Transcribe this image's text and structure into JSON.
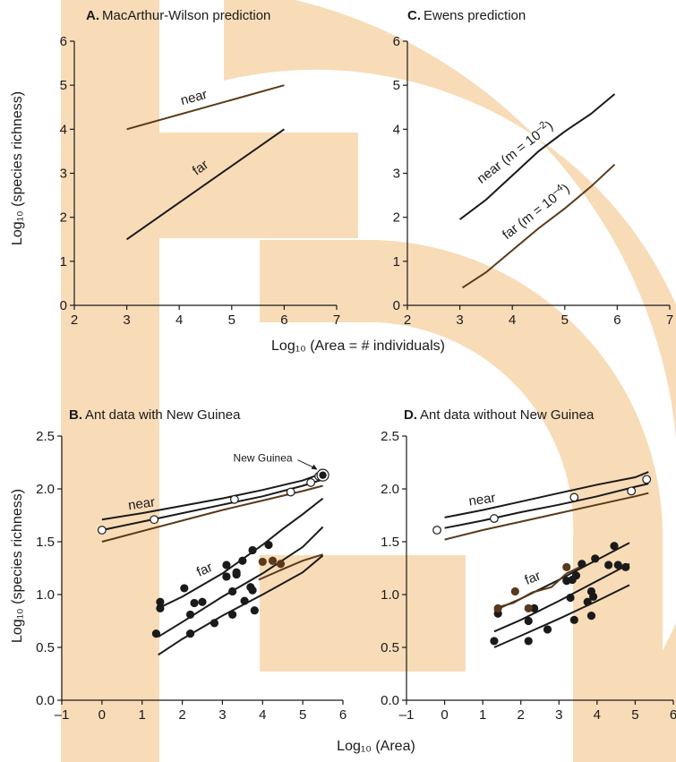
{
  "colors": {
    "dark": "#1a1a1a",
    "brown": "#5a3a1a",
    "watermark": "#f8dcb8"
  },
  "labels": {
    "ylabel_top": "Log₁₀ (species richness)",
    "ylabel_bottom": "Log₁₀ (species richness)",
    "xlabel_top": "Log₁₀ (Area = # individuals)",
    "xlabel_bottom": "Log₁₀ (Area)"
  },
  "chart_data": [
    {
      "id": "A",
      "type": "line",
      "title_letter": "A.",
      "title": "MacArthur-Wilson prediction",
      "xlim": [
        2,
        7
      ],
      "ylim": [
        0,
        6
      ],
      "xticks": [
        2,
        3,
        4,
        5,
        6,
        7
      ],
      "yticks": [
        0,
        1,
        2,
        3,
        4,
        5,
        6
      ],
      "series": [
        {
          "name": "near",
          "label_text": "near",
          "color": "brown",
          "curve": [
            [
              3,
              4.0
            ],
            [
              6,
              5.0
            ]
          ],
          "label_at": [
            4.3,
            4.63
          ],
          "label_angle": -15
        },
        {
          "name": "far",
          "label_text": "far",
          "color": "dark",
          "curve": [
            [
              3,
              1.5
            ],
            [
              6,
              4.0
            ]
          ],
          "label_at": [
            4.45,
            3.05
          ],
          "label_angle": -36
        }
      ]
    },
    {
      "id": "C",
      "type": "line",
      "title_letter": "C.",
      "title": "Ewens prediction",
      "xlim": [
        2,
        7
      ],
      "ylim": [
        0,
        6
      ],
      "xticks": [
        2,
        3,
        4,
        5,
        6,
        7
      ],
      "yticks": [
        0,
        1,
        2,
        3,
        4,
        5,
        6
      ],
      "series": [
        {
          "name": "near (m = 10⁻²)",
          "label_text": "near (m = 10–2)",
          "color": "dark",
          "curve": [
            [
              3.0,
              1.95
            ],
            [
              3.5,
              2.4
            ],
            [
              4.0,
              2.95
            ],
            [
              4.5,
              3.5
            ],
            [
              5.0,
              3.95
            ],
            [
              5.5,
              4.35
            ],
            [
              5.95,
              4.8
            ]
          ],
          "label_at": [
            4.1,
            3.4
          ],
          "label_angle": -38
        },
        {
          "name": "far (m = 10⁻⁴)",
          "label_text": "far (m = 10–4)",
          "color": "brown",
          "curve": [
            [
              3.05,
              0.4
            ],
            [
              3.5,
              0.75
            ],
            [
              4.0,
              1.25
            ],
            [
              4.5,
              1.75
            ],
            [
              5.0,
              2.2
            ],
            [
              5.5,
              2.7
            ],
            [
              5.95,
              3.2
            ]
          ],
          "label_at": [
            4.5,
            2.05
          ],
          "label_angle": -38
        }
      ]
    },
    {
      "id": "B",
      "type": "scatter",
      "title_letter": "B.",
      "title": "Ant data with New Guinea",
      "xlim": [
        -1,
        6
      ],
      "ylim": [
        0,
        2.5
      ],
      "xticks": [
        -1,
        0,
        1,
        2,
        3,
        4,
        5,
        6
      ],
      "xtick_labels": [
        "–1",
        "0",
        "1",
        "2",
        "3",
        "4",
        "5",
        "6"
      ],
      "yticks": [
        0,
        0.5,
        1.0,
        1.5,
        2.0,
        2.5
      ],
      "ytick_labels": [
        "0.0",
        "0.5",
        "1.0",
        "1.5",
        "2.0",
        "2.5"
      ],
      "near_open": [
        [
          0.0,
          1.61
        ],
        [
          1.3,
          1.71
        ],
        [
          3.3,
          1.9
        ],
        [
          4.7,
          1.97
        ],
        [
          5.2,
          2.06
        ],
        [
          5.4,
          2.12
        ]
      ],
      "far_black": [
        [
          1.35,
          0.63
        ],
        [
          1.45,
          0.93
        ],
        [
          1.45,
          0.87
        ],
        [
          2.05,
          1.06
        ],
        [
          2.2,
          0.63
        ],
        [
          2.2,
          0.81
        ],
        [
          2.3,
          0.92
        ],
        [
          2.5,
          0.93
        ],
        [
          2.8,
          0.73
        ],
        [
          3.1,
          1.28
        ],
        [
          3.1,
          1.17
        ],
        [
          3.25,
          1.03
        ],
        [
          3.25,
          0.81
        ],
        [
          3.35,
          1.19
        ],
        [
          3.35,
          1.21
        ],
        [
          3.5,
          1.32
        ],
        [
          3.55,
          0.94
        ],
        [
          3.7,
          1.07
        ],
        [
          3.75,
          1.04
        ],
        [
          3.75,
          1.42
        ],
        [
          3.8,
          0.85
        ],
        [
          4.15,
          1.47
        ]
      ],
      "far_brown": [
        [
          4.0,
          1.31
        ],
        [
          4.25,
          1.32
        ],
        [
          4.45,
          1.29
        ]
      ],
      "ng_point": [
        5.5,
        2.13
      ],
      "ng_label": "New Guinea",
      "near_curves": [
        {
          "color": "dark",
          "pts": [
            [
              0,
              1.71
            ],
            [
              1,
              1.77
            ],
            [
              2,
              1.84
            ],
            [
              3,
              1.91
            ],
            [
              4,
              1.99
            ],
            [
              5,
              2.08
            ],
            [
              5.5,
              2.15
            ]
          ]
        },
        {
          "color": "dark",
          "pts": [
            [
              0,
              1.61
            ],
            [
              1,
              1.69
            ],
            [
              2,
              1.77
            ],
            [
              3,
              1.85
            ],
            [
              4,
              1.93
            ],
            [
              5,
              2.03
            ],
            [
              5.5,
              2.09
            ]
          ]
        },
        {
          "color": "brown",
          "pts": [
            [
              0,
              1.5
            ],
            [
              1,
              1.6
            ],
            [
              2,
              1.7
            ],
            [
              3,
              1.8
            ],
            [
              4,
              1.89
            ],
            [
              5,
              1.98
            ],
            [
              5.5,
              2.03
            ]
          ]
        }
      ],
      "far_curves": [
        {
          "color": "dark",
          "pts": [
            [
              1.4,
              0.87
            ],
            [
              2,
              0.98
            ],
            [
              3,
              1.2
            ],
            [
              4,
              1.47
            ],
            [
              4.5,
              1.62
            ],
            [
              5,
              1.76
            ],
            [
              5.5,
              1.91
            ]
          ]
        },
        {
          "color": "dark",
          "pts": [
            [
              1.4,
              0.6
            ],
            [
              2,
              0.74
            ],
            [
              3,
              0.98
            ],
            [
              4,
              1.2
            ],
            [
              5,
              1.45
            ],
            [
              5.5,
              1.64
            ]
          ]
        },
        {
          "color": "dark",
          "pts": [
            [
              1.4,
              0.43
            ],
            [
              2,
              0.58
            ],
            [
              3,
              0.8
            ],
            [
              4,
              1.0
            ],
            [
              5,
              1.21
            ],
            [
              5.5,
              1.37
            ]
          ]
        },
        {
          "color": "brown",
          "pts": [
            [
              3.9,
              1.14
            ],
            [
              4.5,
              1.24
            ],
            [
              5,
              1.32
            ],
            [
              5.5,
              1.38
            ]
          ]
        }
      ],
      "near_label": {
        "text": "near",
        "at": [
          1.0,
          1.82
        ],
        "angle": -8
      },
      "far_label": {
        "text": "far",
        "at": [
          2.6,
          1.2
        ],
        "angle": -25
      }
    },
    {
      "id": "D",
      "type": "scatter",
      "title_letter": "D.",
      "title": "Ant data without New Guinea",
      "xlim": [
        -1,
        6
      ],
      "ylim": [
        0,
        2.5
      ],
      "xticks": [
        -1,
        0,
        1,
        2,
        3,
        4,
        5,
        6
      ],
      "xtick_labels": [
        "–1",
        "0",
        "1",
        "2",
        "3",
        "4",
        "5",
        "6"
      ],
      "yticks": [
        0,
        0.5,
        1.0,
        1.5,
        2.0,
        2.5
      ],
      "ytick_labels": [
        "0.0",
        "0.5",
        "1.0",
        "1.5",
        "2.0",
        "2.5"
      ],
      "near_open": [
        [
          -0.2,
          1.61
        ],
        [
          1.3,
          1.72
        ],
        [
          3.4,
          1.92
        ],
        [
          4.9,
          1.98
        ],
        [
          5.3,
          2.09
        ]
      ],
      "far_black": [
        [
          1.3,
          0.56
        ],
        [
          1.4,
          0.82
        ],
        [
          2.2,
          0.56
        ],
        [
          2.2,
          0.75
        ],
        [
          2.35,
          0.87
        ],
        [
          2.7,
          0.67
        ],
        [
          3.2,
          1.13
        ],
        [
          3.3,
          0.97
        ],
        [
          3.35,
          1.14
        ],
        [
          3.4,
          0.76
        ],
        [
          3.45,
          1.18
        ],
        [
          3.6,
          1.29
        ],
        [
          3.75,
          0.93
        ],
        [
          3.85,
          1.03
        ],
        [
          3.85,
          0.8
        ],
        [
          3.9,
          0.98
        ],
        [
          3.95,
          1.34
        ],
        [
          4.3,
          1.28
        ],
        [
          4.45,
          1.46
        ],
        [
          4.55,
          1.28
        ],
        [
          4.75,
          1.26
        ]
      ],
      "far_brown": [
        [
          1.4,
          0.87
        ],
        [
          1.85,
          1.03
        ],
        [
          2.2,
          0.87
        ],
        [
          3.2,
          1.26
        ]
      ],
      "near_curves": [
        {
          "color": "dark",
          "pts": [
            [
              0,
              1.73
            ],
            [
              1,
              1.8
            ],
            [
              2,
              1.88
            ],
            [
              3,
              1.96
            ],
            [
              4,
              2.04
            ],
            [
              5,
              2.11
            ],
            [
              5.35,
              2.16
            ]
          ]
        },
        {
          "color": "dark",
          "pts": [
            [
              0,
              1.63
            ],
            [
              1,
              1.7
            ],
            [
              2,
              1.78
            ],
            [
              3,
              1.85
            ],
            [
              4,
              1.93
            ],
            [
              5,
              2.02
            ],
            [
              5.35,
              2.05
            ]
          ]
        },
        {
          "color": "brown",
          "pts": [
            [
              0,
              1.52
            ],
            [
              1,
              1.61
            ],
            [
              2,
              1.69
            ],
            [
              3,
              1.77
            ],
            [
              4,
              1.85
            ],
            [
              5,
              1.93
            ],
            [
              5.35,
              1.96
            ]
          ]
        }
      ],
      "far_curves": [
        {
          "color": "dark",
          "pts": [
            [
              1.3,
              0.85
            ],
            [
              2,
              0.96
            ],
            [
              3,
              1.14
            ],
            [
              4,
              1.33
            ],
            [
              4.85,
              1.49
            ]
          ]
        },
        {
          "color": "dark",
          "pts": [
            [
              1.3,
              0.65
            ],
            [
              2,
              0.76
            ],
            [
              3,
              0.94
            ],
            [
              4,
              1.13
            ],
            [
              4.85,
              1.29
            ]
          ]
        },
        {
          "color": "dark",
          "pts": [
            [
              1.3,
              0.5
            ],
            [
              2,
              0.61
            ],
            [
              3,
              0.77
            ],
            [
              4,
              0.94
            ],
            [
              4.85,
              1.09
            ]
          ]
        },
        {
          "color": "brown",
          "pts": [
            [
              1.3,
              0.87
            ],
            [
              1.8,
              0.92
            ],
            [
              2.3,
              1.02
            ],
            [
              2.8,
              1.07
            ],
            [
              3.2,
              1.2
            ],
            [
              3.55,
              1.26
            ]
          ]
        }
      ],
      "near_label": {
        "text": "near",
        "at": [
          1.0,
          1.86
        ],
        "angle": -8
      },
      "far_label": {
        "text": "far",
        "at": [
          2.35,
          1.12
        ],
        "angle": -22
      }
    }
  ]
}
